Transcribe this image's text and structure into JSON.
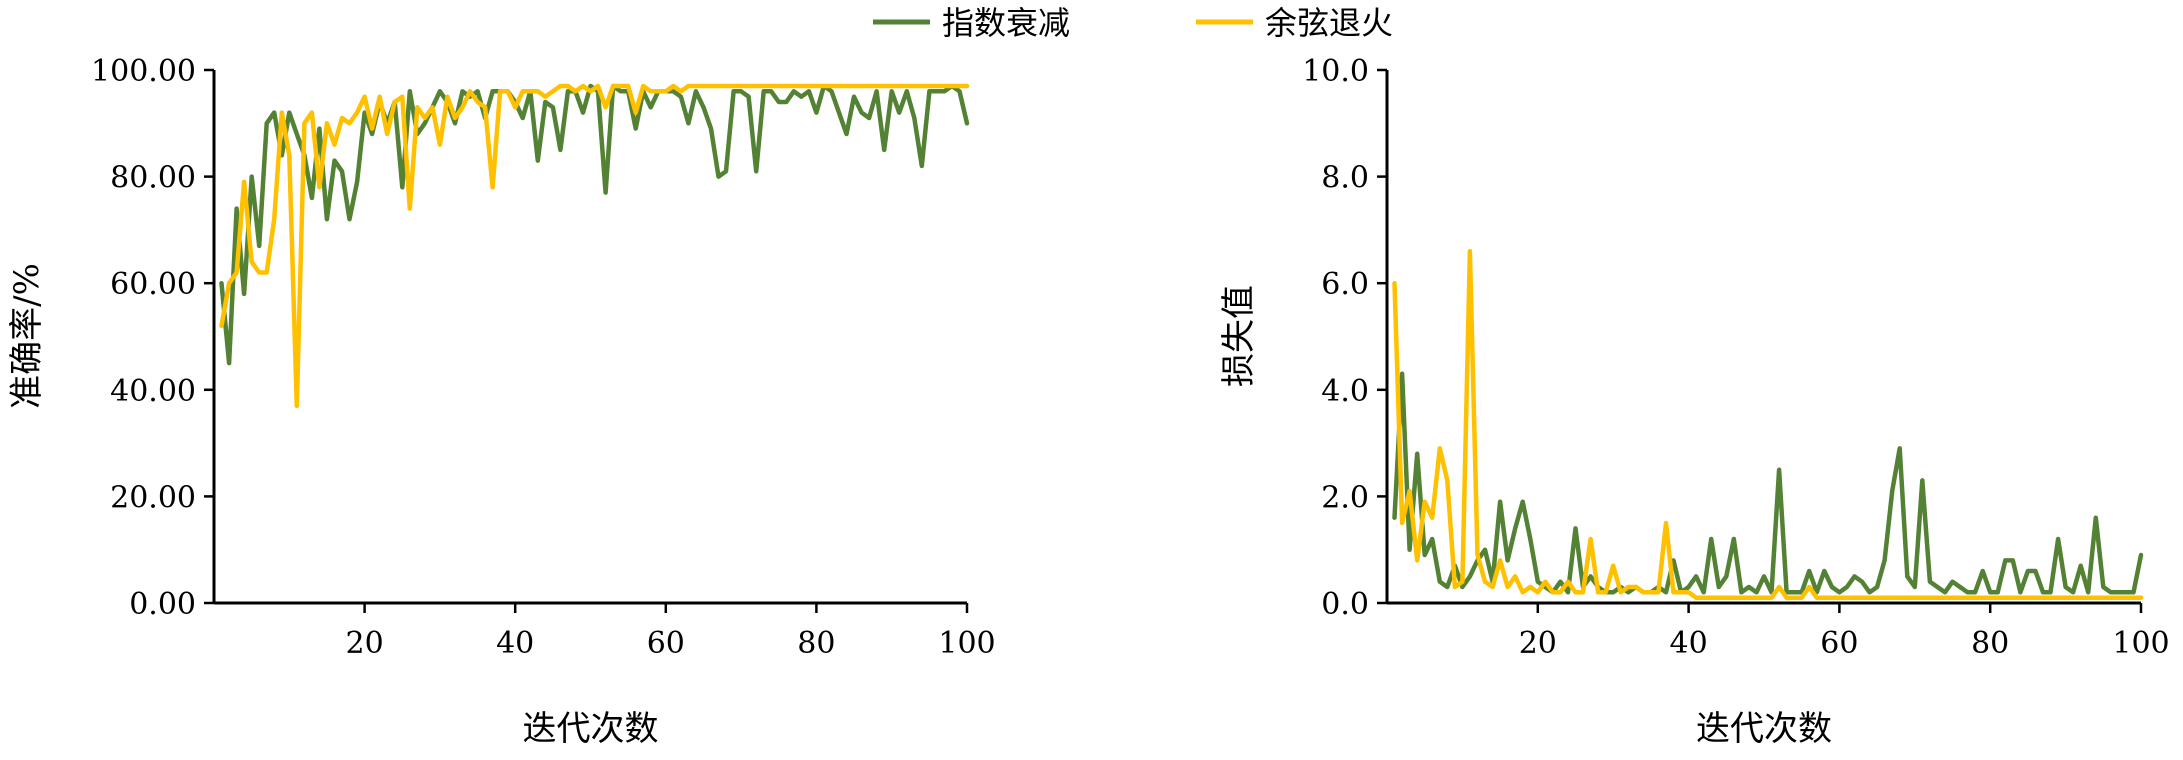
{
  "colors": {
    "exp": "#548235",
    "cos": "#FFC000",
    "axis": "#000000"
  },
  "legend": [
    {
      "name": "指数衰减",
      "color": "#548235"
    },
    {
      "name": "余弦退火",
      "color": "#FFC000"
    }
  ],
  "chart_data": [
    {
      "type": "line",
      "xlabel": "迭代次数",
      "ylabel": "准确率/%",
      "xlim": [
        0,
        100
      ],
      "ylim": [
        0,
        100
      ],
      "xticks": [
        "20",
        "40",
        "60",
        "80",
        "100"
      ],
      "yticks": [
        "0.00",
        "20.00",
        "40.00",
        "60.00",
        "80.00",
        "100.00"
      ],
      "x": [
        1,
        2,
        3,
        4,
        5,
        6,
        7,
        8,
        9,
        10,
        11,
        12,
        13,
        14,
        15,
        16,
        17,
        18,
        19,
        20,
        21,
        22,
        23,
        24,
        25,
        26,
        27,
        28,
        29,
        30,
        31,
        32,
        33,
        34,
        35,
        36,
        37,
        38,
        39,
        40,
        41,
        42,
        43,
        44,
        45,
        46,
        47,
        48,
        49,
        50,
        51,
        52,
        53,
        54,
        55,
        56,
        57,
        58,
        59,
        60,
        61,
        62,
        63,
        64,
        65,
        66,
        67,
        68,
        69,
        70,
        71,
        72,
        73,
        74,
        75,
        76,
        77,
        78,
        79,
        80,
        81,
        82,
        83,
        84,
        85,
        86,
        87,
        88,
        89,
        90,
        91,
        92,
        93,
        94,
        95,
        96,
        97,
        98,
        99,
        100
      ],
      "series": [
        {
          "name": "指数衰减",
          "values": [
            60,
            45,
            74,
            58,
            80,
            67,
            90,
            92,
            84,
            92,
            88,
            84,
            76,
            89,
            72,
            83,
            81,
            72,
            79,
            92,
            88,
            94,
            90,
            94,
            78,
            96,
            88,
            90,
            93,
            96,
            94,
            90,
            96,
            95,
            96,
            91,
            96,
            96,
            96,
            94,
            91,
            96,
            83,
            94,
            93,
            85,
            96,
            96,
            92,
            97,
            96,
            77,
            97,
            96,
            96,
            89,
            96,
            93,
            96,
            96,
            96,
            95,
            90,
            96,
            93,
            89,
            80,
            81,
            96,
            96,
            95,
            81,
            96,
            96,
            94,
            94,
            96,
            95,
            96,
            92,
            97,
            96,
            92,
            88,
            95,
            92,
            91,
            96,
            85,
            96,
            92,
            96,
            91,
            82,
            96,
            96,
            96,
            97,
            96,
            90
          ]
        },
        {
          "name": "余弦退火",
          "values": [
            52,
            60,
            62,
            79,
            64,
            62,
            62,
            72,
            92,
            84,
            37,
            90,
            92,
            78,
            90,
            86,
            91,
            90,
            92,
            95,
            89,
            95,
            88,
            94,
            95,
            74,
            93,
            91,
            93,
            86,
            95,
            91,
            93,
            96,
            94,
            93,
            78,
            96,
            96,
            93,
            96,
            96,
            96,
            95,
            96,
            97,
            97,
            96,
            97,
            96,
            97,
            93,
            97,
            97,
            97,
            92,
            97,
            96,
            96,
            96,
            97,
            96,
            97,
            97,
            97,
            97,
            97,
            97,
            97,
            97,
            97,
            97,
            97,
            97,
            97,
            97,
            97,
            97,
            97,
            97,
            97,
            97,
            97,
            97,
            97,
            97,
            97,
            97,
            97,
            97,
            97,
            97,
            97,
            97,
            97,
            97,
            97,
            97,
            97,
            97
          ]
        }
      ]
    },
    {
      "type": "line",
      "xlabel": "迭代次数",
      "ylabel": "损失值",
      "xlim": [
        0,
        100
      ],
      "ylim": [
        0,
        10
      ],
      "xticks": [
        "20",
        "40",
        "60",
        "80",
        "100"
      ],
      "yticks": [
        "0.0",
        "2.0",
        "4.0",
        "6.0",
        "8.0",
        "10.0"
      ],
      "x": [
        1,
        2,
        3,
        4,
        5,
        6,
        7,
        8,
        9,
        10,
        11,
        12,
        13,
        14,
        15,
        16,
        17,
        18,
        19,
        20,
        21,
        22,
        23,
        24,
        25,
        26,
        27,
        28,
        29,
        30,
        31,
        32,
        33,
        34,
        35,
        36,
        37,
        38,
        39,
        40,
        41,
        42,
        43,
        44,
        45,
        46,
        47,
        48,
        49,
        50,
        51,
        52,
        53,
        54,
        55,
        56,
        57,
        58,
        59,
        60,
        61,
        62,
        63,
        64,
        65,
        66,
        67,
        68,
        69,
        70,
        71,
        72,
        73,
        74,
        75,
        76,
        77,
        78,
        79,
        80,
        81,
        82,
        83,
        84,
        85,
        86,
        87,
        88,
        89,
        90,
        91,
        92,
        93,
        94,
        95,
        96,
        97,
        98,
        99,
        100
      ],
      "series": [
        {
          "name": "指数衰减",
          "values": [
            1.6,
            4.3,
            1.0,
            2.8,
            0.9,
            1.2,
            0.4,
            0.3,
            0.7,
            0.3,
            0.5,
            0.8,
            1.0,
            0.4,
            1.9,
            0.8,
            1.4,
            1.9,
            1.2,
            0.4,
            0.3,
            0.2,
            0.4,
            0.2,
            1.4,
            0.3,
            0.5,
            0.3,
            0.2,
            0.2,
            0.3,
            0.2,
            0.3,
            0.2,
            0.2,
            0.3,
            0.2,
            0.8,
            0.2,
            0.3,
            0.5,
            0.2,
            1.2,
            0.3,
            0.5,
            1.2,
            0.2,
            0.3,
            0.2,
            0.5,
            0.2,
            2.5,
            0.2,
            0.2,
            0.2,
            0.6,
            0.2,
            0.6,
            0.3,
            0.2,
            0.3,
            0.5,
            0.4,
            0.2,
            0.3,
            0.8,
            2.1,
            2.9,
            0.5,
            0.3,
            2.3,
            0.4,
            0.3,
            0.2,
            0.4,
            0.3,
            0.2,
            0.2,
            0.6,
            0.2,
            0.2,
            0.8,
            0.8,
            0.2,
            0.6,
            0.6,
            0.2,
            0.2,
            1.2,
            0.3,
            0.2,
            0.7,
            0.2,
            1.6,
            0.3,
            0.2,
            0.2,
            0.2,
            0.2,
            0.9
          ]
        },
        {
          "name": "余弦退火",
          "values": [
            6.0,
            1.5,
            2.1,
            0.8,
            1.9,
            1.6,
            2.9,
            2.3,
            0.3,
            0.4,
            6.6,
            0.9,
            0.4,
            0.3,
            0.8,
            0.3,
            0.5,
            0.2,
            0.3,
            0.2,
            0.4,
            0.2,
            0.2,
            0.4,
            0.2,
            0.2,
            1.2,
            0.2,
            0.2,
            0.7,
            0.2,
            0.3,
            0.3,
            0.2,
            0.2,
            0.2,
            1.5,
            0.2,
            0.2,
            0.2,
            0.1,
            0.1,
            0.1,
            0.1,
            0.1,
            0.1,
            0.1,
            0.1,
            0.1,
            0.1,
            0.1,
            0.3,
            0.1,
            0.1,
            0.1,
            0.3,
            0.1,
            0.1,
            0.1,
            0.1,
            0.1,
            0.1,
            0.1,
            0.1,
            0.1,
            0.1,
            0.1,
            0.1,
            0.1,
            0.1,
            0.1,
            0.1,
            0.1,
            0.1,
            0.1,
            0.1,
            0.1,
            0.1,
            0.1,
            0.1,
            0.1,
            0.1,
            0.1,
            0.1,
            0.1,
            0.1,
            0.1,
            0.1,
            0.1,
            0.1,
            0.1,
            0.1,
            0.1,
            0.1,
            0.1,
            0.1,
            0.1,
            0.1,
            0.1,
            0.1
          ]
        }
      ]
    }
  ]
}
